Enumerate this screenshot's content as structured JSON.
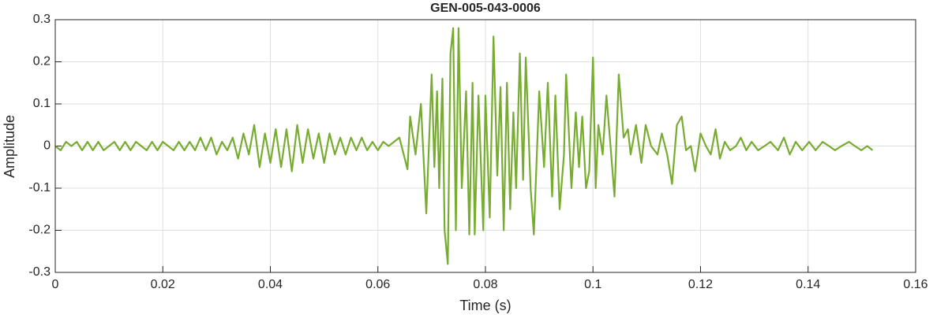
{
  "chart_data": {
    "type": "line",
    "title": "GEN-005-043-0006",
    "xlabel": "Time (s)",
    "ylabel": "Amplitude",
    "color": "#77ac30",
    "grid": true,
    "xlim": [
      0,
      0.16
    ],
    "ylim": [
      -0.3,
      0.3
    ],
    "xticks": [
      0,
      0.02,
      0.04,
      0.06,
      0.08,
      0.1,
      0.12,
      0.14,
      0.16
    ],
    "yticks": [
      -0.3,
      -0.2,
      -0.1,
      0,
      0.1,
      0.2,
      0.3
    ],
    "x": [
      0,
      0.001,
      0.002,
      0.003,
      0.004,
      0.005,
      0.006,
      0.007,
      0.008,
      0.009,
      0.01,
      0.011,
      0.012,
      0.013,
      0.014,
      0.015,
      0.016,
      0.017,
      0.018,
      0.019,
      0.02,
      0.021,
      0.022,
      0.023,
      0.024,
      0.025,
      0.026,
      0.027,
      0.028,
      0.029,
      0.03,
      0.031,
      0.032,
      0.033,
      0.034,
      0.035,
      0.036,
      0.037,
      0.038,
      0.039,
      0.04,
      0.041,
      0.042,
      0.043,
      0.044,
      0.045,
      0.046,
      0.047,
      0.048,
      0.049,
      0.05,
      0.051,
      0.052,
      0.053,
      0.054,
      0.055,
      0.056,
      0.057,
      0.058,
      0.059,
      0.06,
      0.061,
      0.062,
      0.063,
      0.064,
      0.065,
      0.0655,
      0.066,
      0.067,
      0.068,
      0.069,
      0.07,
      0.0705,
      0.071,
      0.0714,
      0.072,
      0.0724,
      0.073,
      0.0735,
      0.074,
      0.0745,
      0.075,
      0.0756,
      0.0764,
      0.077,
      0.0776,
      0.078,
      0.0787,
      0.0796,
      0.08,
      0.0808,
      0.0815,
      0.0822,
      0.0828,
      0.0834,
      0.084,
      0.0846,
      0.0852,
      0.0857,
      0.0864,
      0.087,
      0.0875,
      0.0884,
      0.089,
      0.09,
      0.0909,
      0.0916,
      0.0924,
      0.093,
      0.0938,
      0.0946,
      0.095,
      0.096,
      0.0968,
      0.0974,
      0.098,
      0.0987,
      0.0993,
      0.1,
      0.1005,
      0.101,
      0.1018,
      0.1025,
      0.1032,
      0.104,
      0.1048,
      0.1057,
      0.1065,
      0.107,
      0.108,
      0.109,
      0.1098,
      0.1108,
      0.112,
      0.1128,
      0.1138,
      0.1147,
      0.1156,
      0.1165,
      0.1173,
      0.1182,
      0.119,
      0.12,
      0.121,
      0.1219,
      0.1228,
      0.1236,
      0.1245,
      0.1255,
      0.1266,
      0.1275,
      0.1285,
      0.1295,
      0.1307,
      0.1319,
      0.133,
      0.1344,
      0.1355,
      0.1366,
      0.1377,
      0.1389,
      0.1402,
      0.1414,
      0.1427,
      0.1439,
      0.145,
      0.1462,
      0.1476,
      0.1487,
      0.1499,
      0.151,
      0.152
    ],
    "values": [
      0,
      -0.01,
      0.01,
      0,
      0.01,
      -0.01,
      0.01,
      -0.01,
      0.01,
      -0.01,
      0,
      0.01,
      -0.01,
      0.01,
      -0.01,
      0.01,
      0,
      -0.01,
      0.01,
      -0.01,
      0.01,
      0,
      -0.01,
      0.01,
      -0.01,
      0.01,
      -0.01,
      0.02,
      -0.01,
      0.02,
      -0.02,
      0.01,
      -0.01,
      0.02,
      -0.03,
      0.03,
      -0.02,
      0.05,
      -0.05,
      0.03,
      -0.04,
      0.04,
      -0.05,
      0.04,
      -0.06,
      0.05,
      -0.04,
      0.04,
      -0.03,
      0.03,
      -0.04,
      0.03,
      -0.02,
      0.02,
      -0.02,
      0.02,
      -0.01,
      0.02,
      -0.01,
      0.01,
      -0.01,
      0.01,
      0,
      0.01,
      0.02,
      -0.03,
      -0.055,
      0.07,
      -0.02,
      0.1,
      -0.16,
      0.17,
      -0.05,
      0.13,
      -0.1,
      0.16,
      -0.2,
      -0.28,
      0.22,
      0.28,
      -0.2,
      0.28,
      -0.1,
      0.13,
      -0.21,
      0.15,
      -0.21,
      0.12,
      -0.2,
      0.12,
      -0.17,
      0.26,
      -0.07,
      0.14,
      -0.2,
      0.15,
      -0.15,
      0.08,
      -0.1,
      0.22,
      -0.08,
      0.21,
      -0.1,
      -0.21,
      0.13,
      -0.05,
      0.15,
      -0.12,
      0.12,
      -0.15,
      -0.02,
      0.17,
      -0.1,
      0.08,
      -0.05,
      0.07,
      -0.1,
      -0.06,
      0.21,
      -0.1,
      0.05,
      -0.02,
      0.12,
      0.01,
      -0.12,
      0.17,
      0.02,
      0.04,
      -0.02,
      0.05,
      -0.04,
      0.05,
      0,
      -0.02,
      0.03,
      -0.02,
      -0.09,
      0.05,
      0.07,
      -0.01,
      0,
      -0.06,
      0.03,
      0,
      -0.02,
      0.04,
      -0.03,
      0.01,
      -0.01,
      0,
      0.02,
      -0.01,
      0.01,
      -0.01,
      0,
      0.01,
      -0.01,
      0.02,
      -0.02,
      0.01,
      -0.01,
      0.01,
      -0.01,
      0.01,
      0,
      -0.01,
      0,
      0.01,
      0,
      -0.01,
      0,
      -0.01
    ]
  }
}
